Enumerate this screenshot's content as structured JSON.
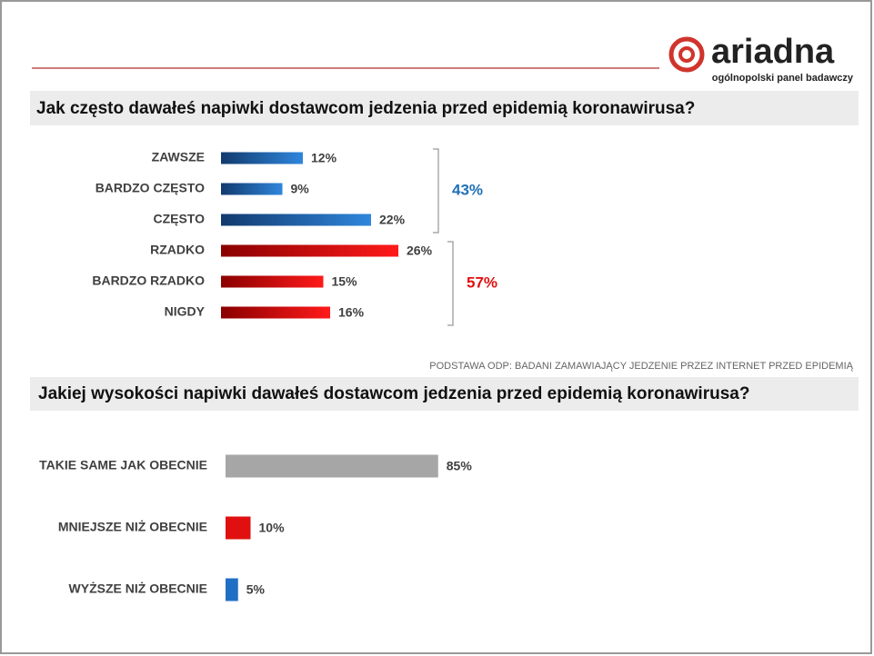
{
  "header": {
    "logo": "ariadna",
    "tagline": "ogólnopolski panel badawczy"
  },
  "note": "PODSTAWA ODP: BADANI ZAMAWIAJĄCY JEDZENIE  PRZEZ INTERNET  PRZED  EPIDEMIĄ",
  "chart_data": [
    {
      "type": "bar",
      "orientation": "horizontal",
      "title": "Jak często dawałeś napiwki dostawcom jedzenia przed epidemią koronawirusa?",
      "categories": [
        "ZAWSZE",
        "BARDZO CZĘSTO",
        "CZĘSTO",
        "RZADKO",
        "BARDZO RZADKO",
        "NIGDY"
      ],
      "values": [
        12,
        9,
        22,
        26,
        15,
        16
      ],
      "value_labels": [
        "12%",
        "9%",
        "22%",
        "26%",
        "15%",
        "16%"
      ],
      "colors": [
        "#1f5fa8",
        "#1f5fa8",
        "#1f5fa8",
        "#e01010",
        "#e01010",
        "#e01010"
      ],
      "groups": [
        {
          "label": "43%",
          "value": 43,
          "color": "#1f6fb5",
          "members": [
            "ZAWSZE",
            "BARDZO CZĘSTO",
            "CZĘSTO"
          ]
        },
        {
          "label": "57%",
          "value": 57,
          "color": "#e01010",
          "members": [
            "RZADKO",
            "BARDZO RZADKO",
            "NIGDY"
          ]
        }
      ]
    },
    {
      "type": "bar",
      "orientation": "horizontal",
      "title": "Jakiej wysokości napiwki dawałeś dostawcom jedzenia przed epidemią koronawirusa?",
      "categories": [
        "TAKIE SAME JAK OBECNIE",
        "MNIEJSZE NIŻ OBECNIE",
        "WYŻSZE NIŻ OBECNIE"
      ],
      "values": [
        85,
        10,
        5
      ],
      "value_labels": [
        "85%",
        "10%",
        "5%"
      ],
      "colors": [
        "#a6a6a6",
        "#e01010",
        "#1f6fc5"
      ]
    }
  ]
}
